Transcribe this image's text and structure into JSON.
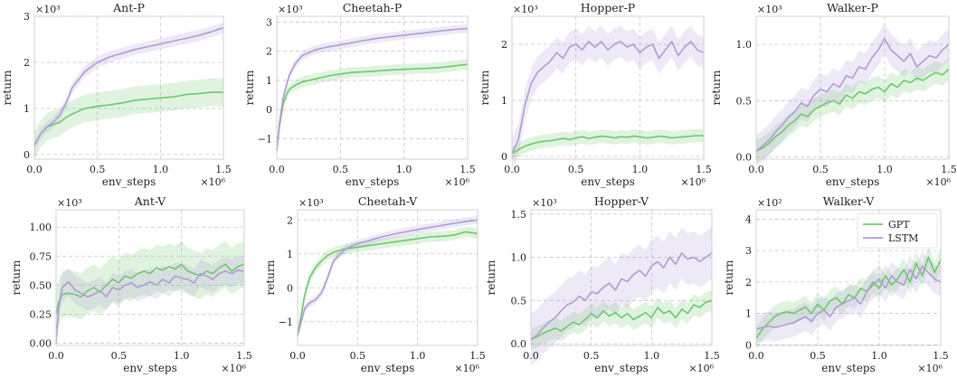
{
  "figure": {
    "ylabel_common": "return"
  },
  "legend": {
    "placement": "upper-right of Walker-V panel",
    "items": [
      {
        "label": "GPT",
        "color": "#6cc96c"
      },
      {
        "label": "LSTM",
        "color": "#b09bd6"
      }
    ]
  },
  "chart_data": [
    {
      "type": "line",
      "title": "Ant-P",
      "xlabel": "env_steps",
      "ylabel": "return",
      "x_multiplier": "×10⁶",
      "y_multiplier": "×10³",
      "xlim": [
        0,
        1.5
      ],
      "ylim": [
        -0.1,
        3.0
      ],
      "xticks": [
        "0.0",
        "0.5",
        "1.0",
        "1.5"
      ],
      "yticks": [
        "0",
        "1",
        "2",
        "3"
      ],
      "x": [
        0.0,
        0.05,
        0.1,
        0.15,
        0.2,
        0.25,
        0.3,
        0.4,
        0.5,
        0.6,
        0.7,
        0.8,
        0.9,
        1.0,
        1.1,
        1.2,
        1.3,
        1.4,
        1.5
      ],
      "series": [
        {
          "name": "GPT",
          "color": "#6cc96c",
          "band": 0.3,
          "values": [
            0.2,
            0.45,
            0.6,
            0.65,
            0.7,
            0.8,
            0.88,
            1.0,
            1.05,
            1.08,
            1.12,
            1.18,
            1.2,
            1.23,
            1.25,
            1.3,
            1.32,
            1.35,
            1.35
          ]
        },
        {
          "name": "LSTM",
          "color": "#b09bd6",
          "band": 0.12,
          "values": [
            0.2,
            0.45,
            0.6,
            0.7,
            0.85,
            1.1,
            1.45,
            1.8,
            2.0,
            2.12,
            2.2,
            2.28,
            2.34,
            2.4,
            2.46,
            2.52,
            2.58,
            2.66,
            2.75
          ]
        }
      ]
    },
    {
      "type": "line",
      "title": "Cheetah-P",
      "xlabel": "env_steps",
      "ylabel": "return",
      "x_multiplier": "×10⁶",
      "y_multiplier": "×10³",
      "xlim": [
        0,
        1.5
      ],
      "ylim": [
        -1.7,
        3.2
      ],
      "xticks": [
        "0.0",
        "0.5",
        "1.0",
        "1.5"
      ],
      "yticks": [
        "−1",
        "0",
        "1",
        "2",
        "3"
      ],
      "x": [
        0.0,
        0.02,
        0.05,
        0.08,
        0.1,
        0.15,
        0.2,
        0.3,
        0.4,
        0.5,
        0.6,
        0.7,
        0.8,
        0.9,
        1.0,
        1.1,
        1.2,
        1.3,
        1.4,
        1.5
      ],
      "series": [
        {
          "name": "GPT",
          "color": "#6cc96c",
          "band": 0.18,
          "values": [
            -1.4,
            -0.6,
            0.2,
            0.55,
            0.7,
            0.85,
            0.95,
            1.05,
            1.15,
            1.22,
            1.28,
            1.3,
            1.33,
            1.36,
            1.38,
            1.4,
            1.42,
            1.45,
            1.5,
            1.55
          ]
        },
        {
          "name": "LSTM",
          "color": "#b09bd6",
          "band": 0.15,
          "values": [
            -1.4,
            -0.5,
            0.4,
            0.9,
            1.2,
            1.6,
            1.85,
            2.05,
            2.15,
            2.22,
            2.3,
            2.38,
            2.45,
            2.5,
            2.55,
            2.6,
            2.65,
            2.7,
            2.75,
            2.78
          ]
        }
      ]
    },
    {
      "type": "line",
      "title": "Hopper-P",
      "xlabel": "env_steps",
      "ylabel": "return",
      "x_multiplier": "×10⁶",
      "y_multiplier": "×10³",
      "xlim": [
        0,
        1.5
      ],
      "ylim": [
        -0.05,
        2.5
      ],
      "xticks": [
        "0.0",
        "0.5",
        "1.0",
        "1.5"
      ],
      "yticks": [
        "0",
        "1",
        "2"
      ],
      "x": [
        0.0,
        0.05,
        0.1,
        0.15,
        0.2,
        0.25,
        0.3,
        0.35,
        0.4,
        0.45,
        0.5,
        0.55,
        0.6,
        0.65,
        0.7,
        0.75,
        0.8,
        0.85,
        0.9,
        0.95,
        1.0,
        1.05,
        1.1,
        1.15,
        1.2,
        1.25,
        1.3,
        1.35,
        1.4,
        1.45,
        1.5
      ],
      "series": [
        {
          "name": "GPT",
          "color": "#6cc96c",
          "band": 0.12,
          "values": [
            0.05,
            0.12,
            0.18,
            0.22,
            0.25,
            0.27,
            0.28,
            0.3,
            0.32,
            0.3,
            0.33,
            0.35,
            0.32,
            0.34,
            0.36,
            0.35,
            0.33,
            0.35,
            0.34,
            0.36,
            0.35,
            0.33,
            0.34,
            0.36,
            0.35,
            0.33,
            0.34,
            0.35,
            0.36,
            0.37,
            0.37
          ]
        },
        {
          "name": "LSTM",
          "color": "#b09bd6",
          "band": 0.28,
          "values": [
            0.05,
            0.3,
            0.9,
            1.3,
            1.5,
            1.6,
            1.7,
            1.85,
            1.75,
            1.95,
            2.0,
            1.9,
            2.05,
            1.95,
            2.05,
            1.9,
            2.0,
            2.05,
            1.95,
            2.0,
            1.85,
            1.95,
            2.0,
            1.75,
            1.9,
            2.05,
            1.8,
            1.95,
            2.05,
            1.9,
            1.85
          ]
        }
      ]
    },
    {
      "type": "line",
      "title": "Walker-P",
      "xlabel": "env_steps",
      "ylabel": "return",
      "x_multiplier": "×10⁶",
      "y_multiplier": "×10³",
      "xlim": [
        0,
        1.5
      ],
      "ylim": [
        -0.02,
        1.25
      ],
      "xticks": [
        "0.0",
        "0.5",
        "1.0",
        "1.5"
      ],
      "yticks": [
        "0.0",
        "0.5",
        "1.0"
      ],
      "x": [
        0.0,
        0.05,
        0.1,
        0.15,
        0.2,
        0.25,
        0.3,
        0.35,
        0.4,
        0.45,
        0.5,
        0.55,
        0.6,
        0.65,
        0.7,
        0.75,
        0.8,
        0.85,
        0.9,
        0.95,
        1.0,
        1.05,
        1.1,
        1.15,
        1.2,
        1.25,
        1.3,
        1.35,
        1.4,
        1.45,
        1.5
      ],
      "series": [
        {
          "name": "GPT",
          "color": "#6cc96c",
          "band": 0.1,
          "values": [
            0.05,
            0.08,
            0.12,
            0.18,
            0.22,
            0.28,
            0.32,
            0.38,
            0.36,
            0.42,
            0.45,
            0.48,
            0.5,
            0.47,
            0.55,
            0.52,
            0.58,
            0.56,
            0.6,
            0.62,
            0.58,
            0.65,
            0.62,
            0.68,
            0.66,
            0.7,
            0.68,
            0.72,
            0.75,
            0.73,
            0.78
          ]
        },
        {
          "name": "LSTM",
          "color": "#b09bd6",
          "band": 0.14,
          "values": [
            0.05,
            0.1,
            0.15,
            0.22,
            0.28,
            0.35,
            0.4,
            0.48,
            0.45,
            0.55,
            0.6,
            0.58,
            0.65,
            0.62,
            0.72,
            0.7,
            0.8,
            0.78,
            0.88,
            0.95,
            1.05,
            0.95,
            0.9,
            0.85,
            0.92,
            0.8,
            0.85,
            0.9,
            0.88,
            0.95,
            1.0
          ]
        }
      ]
    },
    {
      "type": "line",
      "title": "Ant-V",
      "xlabel": "env_steps",
      "ylabel": "return",
      "x_multiplier": "×10⁶",
      "y_multiplier": "×10³",
      "xlim": [
        0,
        1.5
      ],
      "ylim": [
        -0.02,
        1.15
      ],
      "xticks": [
        "0.0",
        "0.5",
        "1.0",
        "1.5"
      ],
      "yticks": [
        "0.00",
        "0.25",
        "0.50",
        "0.75",
        "1.00"
      ],
      "x": [
        0.0,
        0.02,
        0.05,
        0.1,
        0.15,
        0.2,
        0.25,
        0.3,
        0.35,
        0.4,
        0.45,
        0.5,
        0.55,
        0.6,
        0.65,
        0.7,
        0.75,
        0.8,
        0.85,
        0.9,
        0.95,
        1.0,
        1.05,
        1.1,
        1.15,
        1.2,
        1.25,
        1.3,
        1.35,
        1.4,
        1.45,
        1.5
      ],
      "series": [
        {
          "name": "GPT",
          "color": "#6cc96c",
          "band": 0.2,
          "values": [
            0.25,
            0.35,
            0.42,
            0.43,
            0.42,
            0.4,
            0.45,
            0.48,
            0.44,
            0.5,
            0.55,
            0.52,
            0.58,
            0.56,
            0.6,
            0.62,
            0.6,
            0.65,
            0.63,
            0.66,
            0.64,
            0.68,
            0.62,
            0.6,
            0.58,
            0.62,
            0.6,
            0.65,
            0.68,
            0.62,
            0.66,
            0.68
          ]
        },
        {
          "name": "LSTM",
          "color": "#b09bd6",
          "band": 0.12,
          "values": [
            0.0,
            0.3,
            0.48,
            0.53,
            0.46,
            0.43,
            0.4,
            0.42,
            0.45,
            0.4,
            0.48,
            0.46,
            0.5,
            0.52,
            0.48,
            0.5,
            0.53,
            0.5,
            0.55,
            0.52,
            0.58,
            0.56,
            0.55,
            0.52,
            0.6,
            0.58,
            0.55,
            0.6,
            0.62,
            0.6,
            0.63,
            0.62
          ]
        }
      ]
    },
    {
      "type": "line",
      "title": "Cheetah-V",
      "xlabel": "env_steps",
      "ylabel": "return",
      "x_multiplier": "×10⁶",
      "y_multiplier": "×10³",
      "xlim": [
        0,
        1.5
      ],
      "ylim": [
        -1.7,
        2.3
      ],
      "xticks": [
        "0.0",
        "0.5",
        "1.0",
        "1.5"
      ],
      "yticks": [
        "−1",
        "0",
        "1",
        "2"
      ],
      "x": [
        0.0,
        0.03,
        0.06,
        0.1,
        0.15,
        0.2,
        0.25,
        0.3,
        0.4,
        0.5,
        0.6,
        0.7,
        0.8,
        0.9,
        1.0,
        1.1,
        1.2,
        1.3,
        1.4,
        1.5
      ],
      "series": [
        {
          "name": "GPT",
          "color": "#6cc96c",
          "band": 0.15,
          "values": [
            -1.4,
            -0.8,
            -0.2,
            0.3,
            0.6,
            0.8,
            0.95,
            1.05,
            1.15,
            1.2,
            1.25,
            1.3,
            1.35,
            1.4,
            1.45,
            1.5,
            1.52,
            1.55,
            1.65,
            1.6
          ]
        },
        {
          "name": "LSTM",
          "color": "#b09bd6",
          "band": 0.12,
          "values": [
            -1.4,
            -1.0,
            -0.6,
            -0.45,
            -0.35,
            -0.15,
            0.3,
            0.8,
            1.15,
            1.3,
            1.4,
            1.5,
            1.58,
            1.65,
            1.72,
            1.78,
            1.84,
            1.9,
            1.95,
            2.0
          ]
        }
      ]
    },
    {
      "type": "line",
      "title": "Hopper-V",
      "xlabel": "env_steps",
      "ylabel": "return",
      "x_multiplier": "×10⁶",
      "y_multiplier": "×10³",
      "xlim": [
        0,
        1.5
      ],
      "ylim": [
        -0.02,
        1.55
      ],
      "xticks": [
        "0.0",
        "0.5",
        "1.0",
        "1.5"
      ],
      "yticks": [
        "0.0",
        "0.5",
        "1.0",
        "1.5"
      ],
      "x": [
        0.0,
        0.05,
        0.1,
        0.15,
        0.2,
        0.25,
        0.3,
        0.35,
        0.4,
        0.45,
        0.5,
        0.55,
        0.6,
        0.65,
        0.7,
        0.75,
        0.8,
        0.85,
        0.9,
        0.95,
        1.0,
        1.05,
        1.1,
        1.15,
        1.2,
        1.25,
        1.3,
        1.35,
        1.4,
        1.45,
        1.5
      ],
      "series": [
        {
          "name": "GPT",
          "color": "#6cc96c",
          "band": 0.12,
          "values": [
            0.05,
            0.08,
            0.12,
            0.15,
            0.18,
            0.15,
            0.2,
            0.25,
            0.22,
            0.28,
            0.35,
            0.3,
            0.38,
            0.32,
            0.36,
            0.3,
            0.35,
            0.28,
            0.32,
            0.36,
            0.3,
            0.42,
            0.35,
            0.38,
            0.3,
            0.4,
            0.35,
            0.45,
            0.42,
            0.48,
            0.5
          ]
        },
        {
          "name": "LSTM",
          "color": "#b09bd6",
          "band": 0.3,
          "values": [
            0.05,
            0.1,
            0.18,
            0.25,
            0.3,
            0.38,
            0.45,
            0.48,
            0.55,
            0.5,
            0.6,
            0.58,
            0.65,
            0.7,
            0.62,
            0.75,
            0.72,
            0.8,
            0.85,
            0.78,
            0.9,
            0.95,
            0.88,
            1.0,
            0.92,
            1.05,
            0.98,
            1.0,
            0.95,
            1.0,
            1.05
          ]
        }
      ]
    },
    {
      "type": "line",
      "title": "Walker-V",
      "xlabel": "env_steps",
      "ylabel": "return",
      "x_multiplier": "×10⁶",
      "y_multiplier": "×10²",
      "xlim": [
        0,
        1.5
      ],
      "ylim": [
        -0.02,
        4.3
      ],
      "xticks": [
        "0.0",
        "0.5",
        "1.0",
        "1.5"
      ],
      "yticks": [
        "0",
        "1",
        "2",
        "3",
        "4"
      ],
      "x": [
        0.0,
        0.05,
        0.1,
        0.15,
        0.2,
        0.25,
        0.3,
        0.35,
        0.4,
        0.45,
        0.5,
        0.55,
        0.6,
        0.65,
        0.7,
        0.75,
        0.8,
        0.85,
        0.9,
        0.95,
        1.0,
        1.05,
        1.1,
        1.15,
        1.2,
        1.25,
        1.3,
        1.35,
        1.4,
        1.45,
        1.5
      ],
      "series": [
        {
          "name": "GPT",
          "color": "#6cc96c",
          "band": 0.35,
          "values": [
            0.2,
            0.5,
            0.7,
            0.9,
            1.0,
            1.05,
            1.0,
            1.1,
            1.2,
            1.0,
            1.3,
            1.1,
            1.4,
            1.5,
            1.3,
            1.6,
            1.5,
            1.8,
            1.7,
            2.0,
            1.8,
            2.2,
            1.9,
            2.1,
            2.4,
            2.0,
            2.6,
            2.2,
            2.8,
            2.3,
            2.7
          ]
        },
        {
          "name": "LSTM",
          "color": "#b09bd6",
          "band": 0.45,
          "values": [
            0.5,
            0.55,
            0.6,
            0.55,
            0.6,
            0.65,
            0.7,
            0.8,
            0.9,
            0.75,
            1.0,
            1.1,
            0.9,
            1.2,
            1.3,
            1.4,
            1.5,
            1.3,
            1.7,
            1.9,
            2.1,
            1.8,
            2.2,
            2.0,
            1.9,
            2.4,
            2.1,
            2.5,
            2.3,
            2.1,
            2.0
          ]
        }
      ]
    }
  ]
}
